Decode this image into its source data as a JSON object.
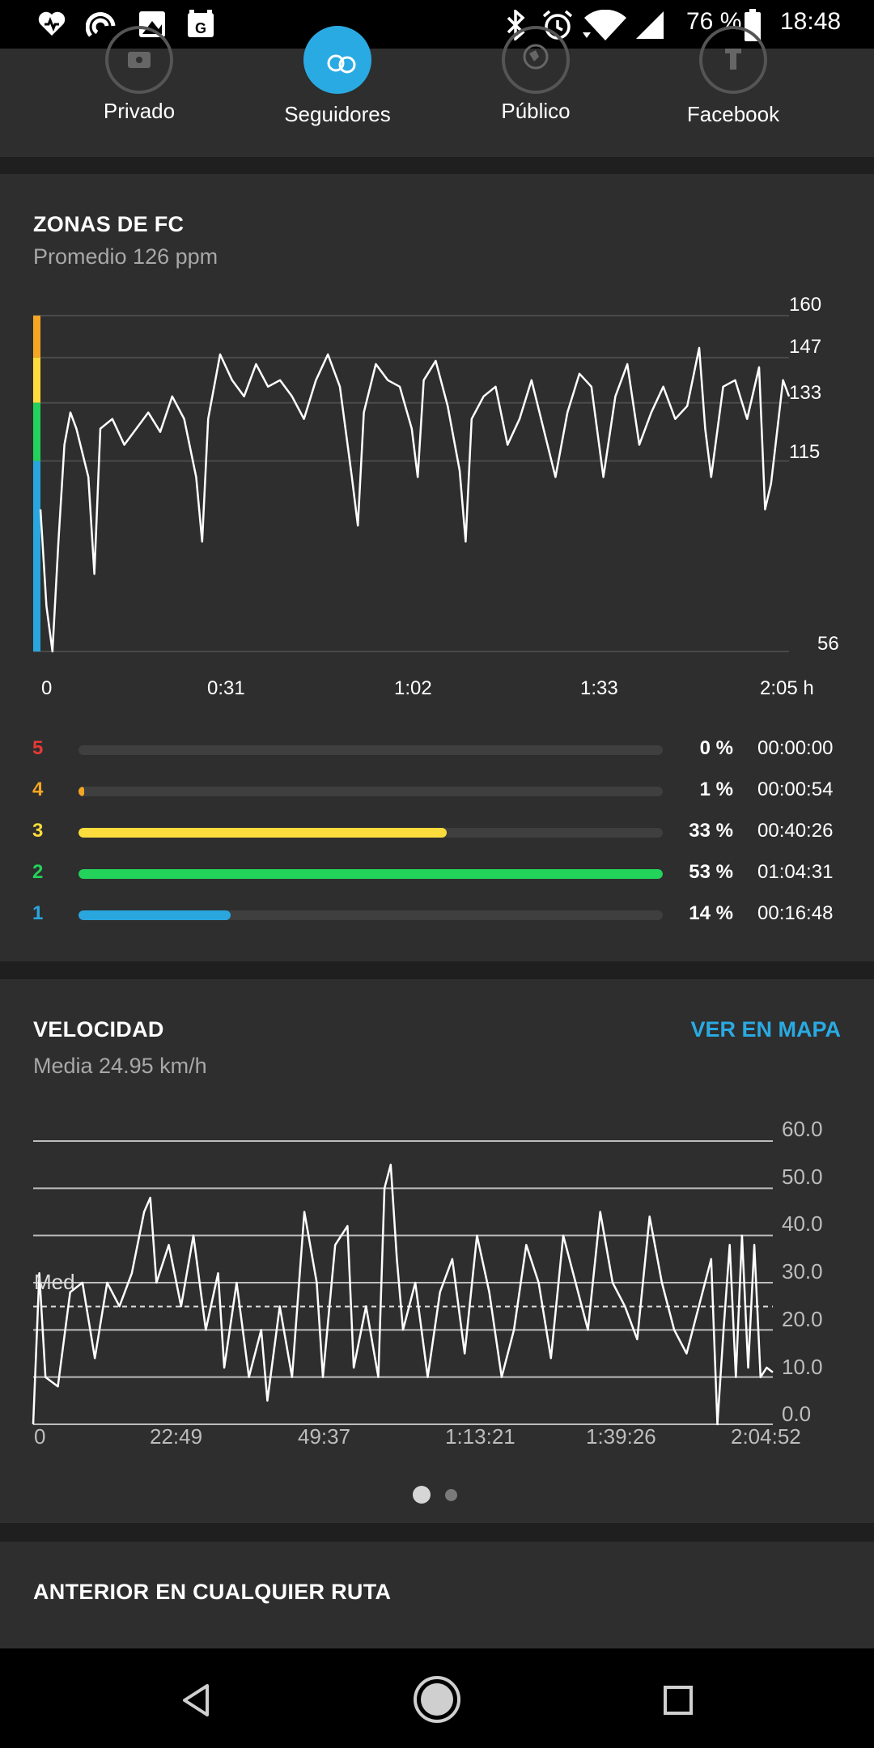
{
  "status_bar": {
    "battery": "76 %",
    "time": "18:48",
    "icons": [
      "heart-pulse-icon",
      "sync-icon",
      "image-icon",
      "gpay-icon",
      "bluetooth-icon",
      "alarm-icon",
      "wifi-icon",
      "signal-icon",
      "battery-icon"
    ]
  },
  "share": {
    "items": [
      {
        "label": "Privado",
        "icon": "lock-icon",
        "active": false
      },
      {
        "label": "Seguidores",
        "icon": "followers-icon",
        "active": true
      },
      {
        "label": "Público",
        "icon": "globe-icon",
        "active": false
      },
      {
        "label": "Facebook",
        "icon": "facebook-icon",
        "active": false
      }
    ]
  },
  "hr_zones": {
    "title": "ZONAS DE FC",
    "subtitle": "Promedio 126 ppm",
    "y_ticks": [
      "160",
      "147",
      "133",
      "115",
      "56"
    ],
    "x_ticks": [
      "0",
      "0:31",
      "1:02",
      "1:33",
      "2:05 h"
    ],
    "zones": [
      {
        "num": "5",
        "color": "#e53935",
        "fraction": 0.0,
        "pct": "0 %",
        "time": "00:00:00"
      },
      {
        "num": "4",
        "color": "#f5a623",
        "fraction": 0.01,
        "pct": "1 %",
        "time": "00:00:54"
      },
      {
        "num": "3",
        "color": "#fbdc3c",
        "fraction": 0.63,
        "pct": "33 %",
        "time": "00:40:26"
      },
      {
        "num": "2",
        "color": "#22d25a",
        "fraction": 1.0,
        "pct": "53 %",
        "time": "01:04:31"
      },
      {
        "num": "1",
        "color": "#2aa6df",
        "fraction": 0.26,
        "pct": "14 %",
        "time": "00:16:48"
      }
    ]
  },
  "speed": {
    "title": "VELOCIDAD",
    "map_link": "VER EN MAPA",
    "subtitle": "Media 24.95 km/h",
    "avg_label": "Med",
    "y_ticks": [
      "60.0",
      "50.0",
      "40.0",
      "30.0",
      "20.0",
      "10.0",
      "0.0"
    ],
    "x_ticks": [
      "0",
      "22:49",
      "49:37",
      "1:13:21",
      "1:39:26",
      "2:04:52"
    ]
  },
  "next_section": {
    "title": "ANTERIOR EN CUALQUIER RUTA"
  },
  "nav": {
    "icons": [
      "back-icon",
      "home-icon",
      "recents-icon"
    ]
  },
  "colors": {
    "accent": "#2aaae2",
    "card": "#2e2e2e",
    "background": "#1f1f1f"
  },
  "chart_data": [
    {
      "type": "line",
      "title": "ZONAS DE FC",
      "subtitle": "Promedio 126 ppm",
      "xlabel": "",
      "ylabel": "",
      "x_unit": "h",
      "ylim": [
        56,
        160
      ],
      "xlim": [
        0,
        125
      ],
      "y_ticks": [
        160,
        147,
        133,
        115,
        56
      ],
      "x_ticks": [
        "0",
        "0:31",
        "1:02",
        "1:33",
        "2:05 h"
      ],
      "zone_band_colors": [
        "#f5a623",
        "#fbdc3c",
        "#22d25a",
        "#2aa6df"
      ],
      "series": [
        {
          "values": [
            [
              0,
              100
            ],
            [
              1,
              70
            ],
            [
              2,
              56
            ],
            [
              3,
              90
            ],
            [
              4,
              120
            ],
            [
              5,
              130
            ],
            [
              6,
              125
            ],
            [
              8,
              110
            ],
            [
              9,
              80
            ],
            [
              10,
              125
            ],
            [
              12,
              128
            ],
            [
              14,
              120
            ],
            [
              16,
              125
            ],
            [
              18,
              130
            ],
            [
              20,
              124
            ],
            [
              22,
              135
            ],
            [
              24,
              128
            ],
            [
              26,
              110
            ],
            [
              27,
              90
            ],
            [
              28,
              128
            ],
            [
              30,
              148
            ],
            [
              32,
              140
            ],
            [
              34,
              135
            ],
            [
              36,
              145
            ],
            [
              38,
              138
            ],
            [
              40,
              140
            ],
            [
              42,
              135
            ],
            [
              44,
              128
            ],
            [
              46,
              140
            ],
            [
              48,
              148
            ],
            [
              50,
              138
            ],
            [
              52,
              110
            ],
            [
              53,
              95
            ],
            [
              54,
              130
            ],
            [
              56,
              145
            ],
            [
              58,
              140
            ],
            [
              60,
              138
            ],
            [
              62,
              125
            ],
            [
              63,
              110
            ],
            [
              64,
              140
            ],
            [
              66,
              146
            ],
            [
              68,
              132
            ],
            [
              70,
              112
            ],
            [
              71,
              90
            ],
            [
              72,
              128
            ],
            [
              74,
              135
            ],
            [
              76,
              138
            ],
            [
              78,
              120
            ],
            [
              80,
              128
            ],
            [
              82,
              140
            ],
            [
              84,
              125
            ],
            [
              86,
              110
            ],
            [
              88,
              130
            ],
            [
              90,
              142
            ],
            [
              92,
              138
            ],
            [
              94,
              110
            ],
            [
              96,
              135
            ],
            [
              98,
              145
            ],
            [
              100,
              120
            ],
            [
              102,
              130
            ],
            [
              104,
              138
            ],
            [
              106,
              128
            ],
            [
              108,
              132
            ],
            [
              110,
              150
            ],
            [
              111,
              125
            ],
            [
              112,
              110
            ],
            [
              114,
              138
            ],
            [
              116,
              140
            ],
            [
              118,
              128
            ],
            [
              120,
              144
            ],
            [
              121,
              100
            ],
            [
              122,
              108
            ],
            [
              124,
              140
            ],
            [
              125,
              135
            ]
          ]
        }
      ]
    },
    {
      "type": "line",
      "title": "VELOCIDAD",
      "subtitle": "Media 24.95 km/h",
      "xlabel": "",
      "ylabel": "",
      "ylim": [
        0,
        60
      ],
      "avg_line": 24.95,
      "avg_label": "Med",
      "y_ticks": [
        "60.0",
        "50.0",
        "40.0",
        "30.0",
        "20.0",
        "10.0",
        "0.0"
      ],
      "x_ticks": [
        "0",
        "22:49",
        "49:37",
        "1:13:21",
        "1:39:26",
        "2:04:52"
      ],
      "series": [
        {
          "values": [
            [
              0,
              0
            ],
            [
              1,
              32
            ],
            [
              2,
              10
            ],
            [
              4,
              8
            ],
            [
              6,
              28
            ],
            [
              8,
              30
            ],
            [
              10,
              14
            ],
            [
              12,
              30
            ],
            [
              14,
              25
            ],
            [
              16,
              32
            ],
            [
              18,
              45
            ],
            [
              19,
              48
            ],
            [
              20,
              30
            ],
            [
              22,
              38
            ],
            [
              24,
              25
            ],
            [
              26,
              40
            ],
            [
              28,
              20
            ],
            [
              30,
              32
            ],
            [
              31,
              12
            ],
            [
              33,
              30
            ],
            [
              35,
              10
            ],
            [
              37,
              20
            ],
            [
              38,
              5
            ],
            [
              40,
              25
            ],
            [
              42,
              10
            ],
            [
              44,
              45
            ],
            [
              46,
              30
            ],
            [
              47,
              10
            ],
            [
              49,
              38
            ],
            [
              51,
              42
            ],
            [
              52,
              12
            ],
            [
              54,
              25
            ],
            [
              56,
              10
            ],
            [
              57,
              50
            ],
            [
              58,
              55
            ],
            [
              59,
              35
            ],
            [
              60,
              20
            ],
            [
              62,
              30
            ],
            [
              64,
              10
            ],
            [
              66,
              28
            ],
            [
              68,
              35
            ],
            [
              70,
              15
            ],
            [
              72,
              40
            ],
            [
              74,
              28
            ],
            [
              76,
              10
            ],
            [
              78,
              20
            ],
            [
              80,
              38
            ],
            [
              82,
              30
            ],
            [
              84,
              14
            ],
            [
              86,
              40
            ],
            [
              88,
              30
            ],
            [
              90,
              20
            ],
            [
              92,
              45
            ],
            [
              94,
              30
            ],
            [
              96,
              25
            ],
            [
              98,
              18
            ],
            [
              100,
              44
            ],
            [
              102,
              30
            ],
            [
              104,
              20
            ],
            [
              106,
              15
            ],
            [
              108,
              25
            ],
            [
              110,
              35
            ],
            [
              111,
              0
            ],
            [
              112,
              20
            ],
            [
              113,
              38
            ],
            [
              114,
              10
            ],
            [
              115,
              40
            ],
            [
              116,
              12
            ],
            [
              117,
              38
            ],
            [
              118,
              10
            ],
            [
              119,
              12
            ],
            [
              120,
              11
            ]
          ]
        }
      ]
    }
  ]
}
